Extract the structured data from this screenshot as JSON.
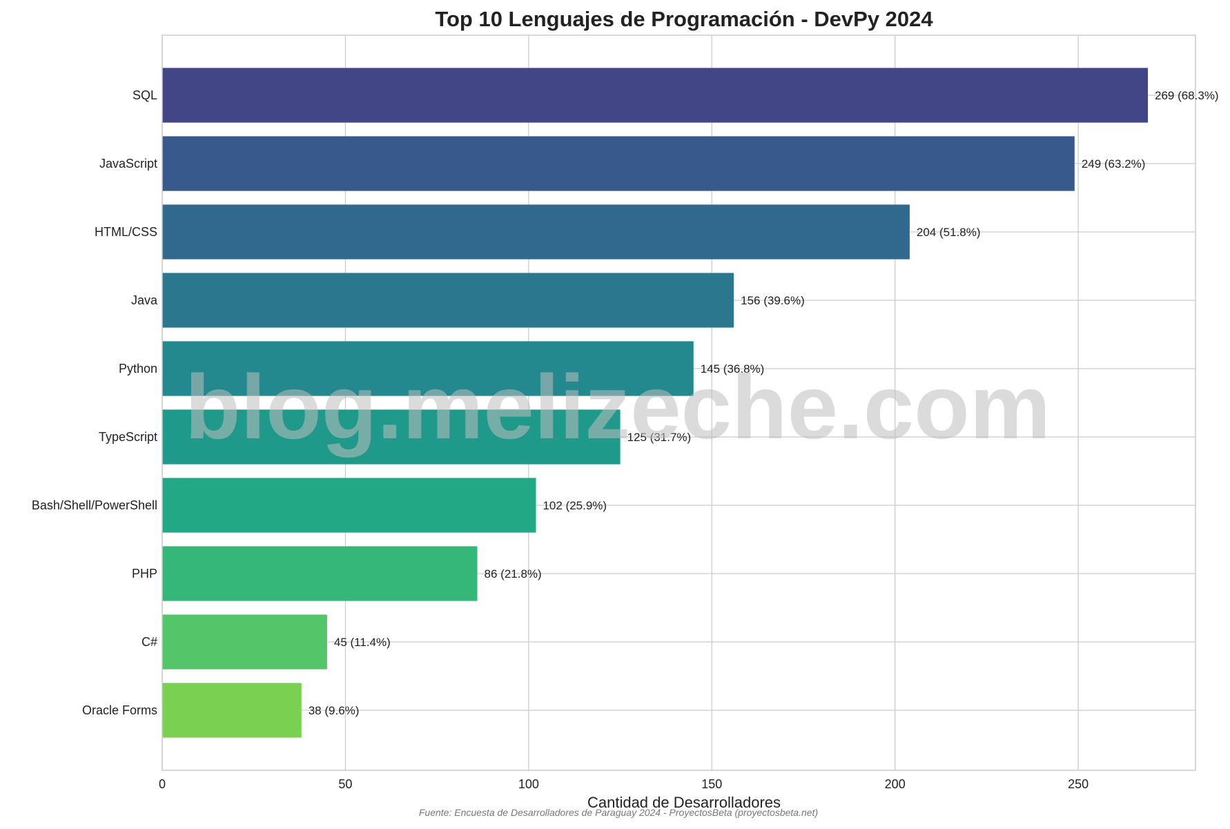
{
  "chart_data": {
    "type": "bar",
    "orientation": "horizontal",
    "title": "Top 10 Lenguajes de Programación - DevPy 2024",
    "xlabel": "Cantidad de Desarrolladores",
    "ylabel": "",
    "xlim": [
      0,
      282
    ],
    "xticks": [
      0,
      50,
      100,
      150,
      200,
      250
    ],
    "grid": true,
    "categories": [
      "SQL",
      "JavaScript",
      "HTML/CSS",
      "Java",
      "Python",
      "TypeScript",
      "Bash/Shell/PowerShell",
      "PHP",
      "C#",
      "Oracle Forms"
    ],
    "values": [
      269,
      249,
      204,
      156,
      145,
      125,
      102,
      86,
      45,
      38
    ],
    "labels": [
      "269 (68.3%)",
      "249 (63.2%)",
      "204 (51.8%)",
      "156 (39.6%)",
      "145 (36.8%)",
      "125 (31.7%)",
      "102 (25.9%)",
      "86 (21.8%)",
      "45 (11.4%)",
      "38 (9.6%)"
    ],
    "colors": [
      "#424686",
      "#38598c",
      "#31688e",
      "#2b788e",
      "#23898e",
      "#1f998a",
      "#22a884",
      "#35b779",
      "#54c568",
      "#7ad151"
    ]
  },
  "source_note": "Fuente: Encuesta de Desarrolladores de Paraguay 2024 - ProyectosBeta (proyectosbeta.net)",
  "watermark": "blog.melizeche.com"
}
